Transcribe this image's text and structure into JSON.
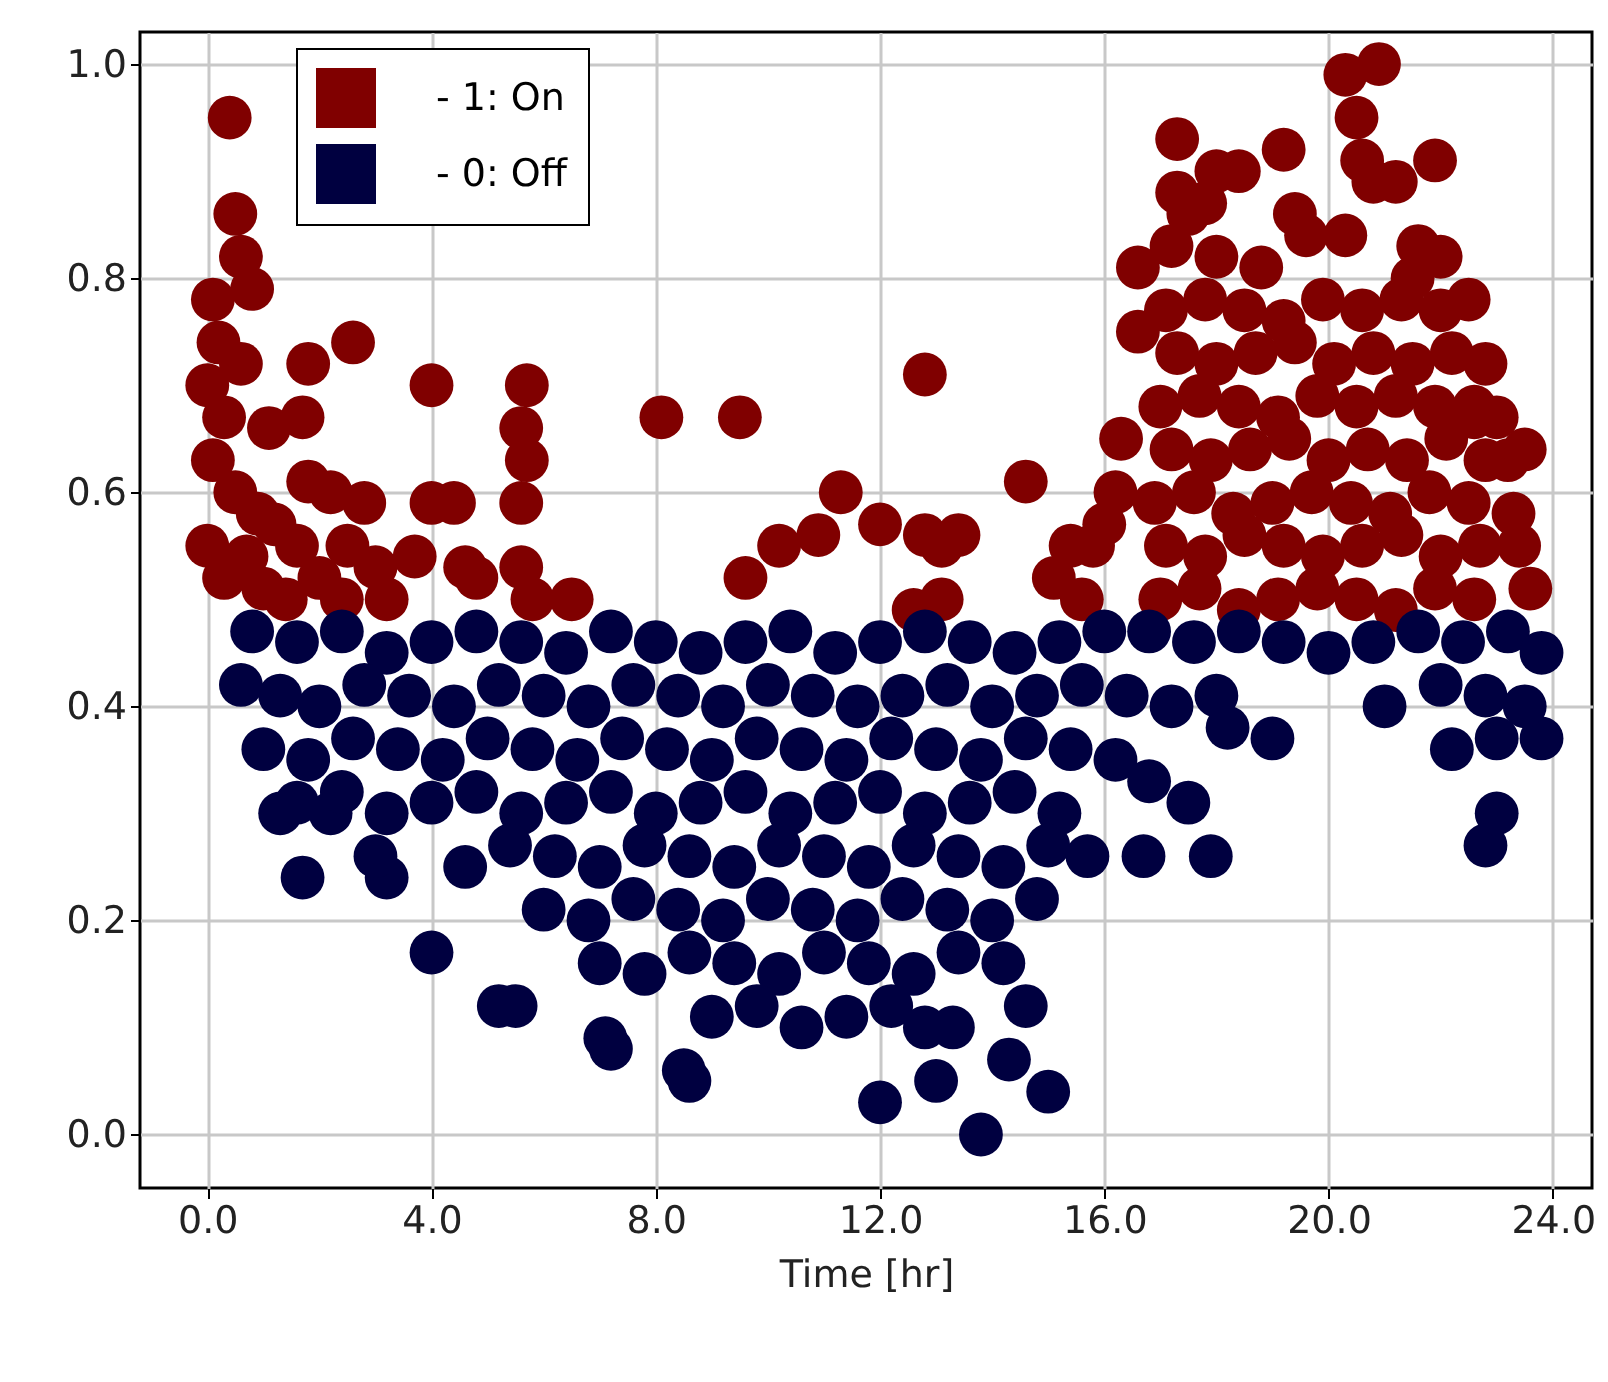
{
  "chart_data": {
    "type": "scatter",
    "xlabel": "Time [hr]",
    "xlim": [
      -1.2,
      24.7
    ],
    "ylim": [
      -0.05,
      1.03
    ],
    "xticks": [
      {
        "value": 0,
        "label": "0.0"
      },
      {
        "value": 4,
        "label": "4.0"
      },
      {
        "value": 8,
        "label": "8.0"
      },
      {
        "value": 12,
        "label": "12.0"
      },
      {
        "value": 16,
        "label": "16.0"
      },
      {
        "value": 20,
        "label": "20.0"
      },
      {
        "value": 24,
        "label": "24.0"
      }
    ],
    "yticks": [
      {
        "value": 0,
        "label": "0.0"
      },
      {
        "value": 0.2,
        "label": "0.2"
      },
      {
        "value": 0.4,
        "label": "0.4"
      },
      {
        "value": 0.6,
        "label": "0.6"
      },
      {
        "value": 0.8,
        "label": "0.8"
      },
      {
        "value": 1,
        "label": "1.0"
      }
    ],
    "grid": true,
    "legend": "top left",
    "marker": "circle",
    "series": [
      {
        "name": "- 1: On",
        "color": "#800000",
        "x": [
          0.4,
          0.5,
          0.6,
          0.8,
          0.1,
          0.2,
          0.0,
          0.6,
          0.3,
          1.1,
          0.1,
          0.5,
          0.9,
          0.0,
          0.3,
          0.7,
          1.2,
          1.6,
          2.0,
          2.4,
          1.8,
          1.7,
          1.8,
          2.6,
          2.2,
          2.8,
          1.0,
          3.0,
          1.4,
          3.2,
          2.5,
          4.0,
          4.0,
          4.4,
          3.7,
          4.6,
          4.8,
          5.7,
          5.6,
          5.7,
          5.6,
          5.6,
          5.8,
          6.5,
          8.1,
          9.5,
          9.6,
          10.2,
          10.9,
          11.3,
          12.0,
          12.6,
          12.8,
          12.8,
          13.1,
          13.4,
          13.1,
          14.6,
          15.1,
          15.6,
          15.8,
          17.3,
          17.3,
          17.5,
          17.8,
          17.2,
          18.0,
          18.0,
          18.4,
          18.8,
          19.2,
          19.4,
          19.6,
          20.3,
          20.9,
          20.5,
          20.6,
          20.8,
          21.2,
          21.9,
          20.3,
          21.6,
          22.0,
          22.5,
          21.5,
          16.6,
          16.6,
          16.3,
          16.2,
          16.0,
          15.4,
          23.0,
          23.2,
          23.3,
          23.4,
          23.6,
          23.5,
          22.8,
          22.6,
          17.0,
          17.7,
          18.4,
          19.1,
          19.8,
          20.5,
          21.2,
          21.9,
          22.6,
          17.1,
          17.8,
          18.5,
          19.2,
          19.9,
          20.6,
          21.3,
          22.0,
          22.7,
          16.9,
          17.6,
          18.3,
          19.0,
          19.7,
          20.4,
          21.1,
          21.8,
          22.5,
          17.2,
          17.9,
          18.6,
          19.3,
          20.0,
          20.7,
          21.4,
          22.1,
          22.8,
          17.0,
          17.7,
          18.4,
          19.1,
          19.8,
          20.5,
          21.2,
          21.9,
          22.6,
          17.3,
          18.0,
          18.7,
          19.4,
          20.1,
          20.8,
          21.5,
          22.2,
          17.1,
          17.8,
          18.5,
          19.2,
          19.9,
          20.6,
          21.3,
          22.0
        ],
        "values": [
          0.95,
          0.86,
          0.82,
          0.79,
          0.78,
          0.74,
          0.7,
          0.72,
          0.67,
          0.66,
          0.63,
          0.6,
          0.58,
          0.55,
          0.52,
          0.54,
          0.57,
          0.55,
          0.52,
          0.5,
          0.61,
          0.67,
          0.72,
          0.74,
          0.6,
          0.59,
          0.51,
          0.53,
          0.5,
          0.5,
          0.55,
          0.7,
          0.59,
          0.59,
          0.54,
          0.53,
          0.52,
          0.7,
          0.66,
          0.63,
          0.59,
          0.53,
          0.5,
          0.5,
          0.67,
          0.67,
          0.52,
          0.55,
          0.56,
          0.6,
          0.57,
          0.49,
          0.71,
          0.56,
          0.55,
          0.56,
          0.5,
          0.61,
          0.52,
          0.5,
          0.55,
          0.93,
          0.88,
          0.86,
          0.87,
          0.83,
          0.82,
          0.9,
          0.9,
          0.81,
          0.92,
          0.86,
          0.84,
          0.99,
          1.0,
          0.95,
          0.91,
          0.89,
          0.89,
          0.91,
          0.84,
          0.83,
          0.82,
          0.78,
          0.8,
          0.81,
          0.75,
          0.65,
          0.6,
          0.57,
          0.55,
          0.67,
          0.63,
          0.58,
          0.55,
          0.51,
          0.64,
          0.72,
          0.68,
          0.5,
          0.51,
          0.49,
          0.5,
          0.51,
          0.5,
          0.49,
          0.51,
          0.5,
          0.55,
          0.54,
          0.56,
          0.55,
          0.54,
          0.55,
          0.56,
          0.54,
          0.55,
          0.59,
          0.6,
          0.58,
          0.59,
          0.6,
          0.59,
          0.58,
          0.6,
          0.59,
          0.64,
          0.63,
          0.64,
          0.65,
          0.63,
          0.64,
          0.63,
          0.65,
          0.63,
          0.68,
          0.69,
          0.68,
          0.67,
          0.69,
          0.68,
          0.69,
          0.68,
          0.67,
          0.73,
          0.72,
          0.73,
          0.74,
          0.72,
          0.73,
          0.72,
          0.73,
          0.77,
          0.78,
          0.77,
          0.76,
          0.78,
          0.77,
          0.78,
          0.77
        ]
      },
      {
        "name": "- 0: Off",
        "color": "#000040",
        "x": [
          1.3,
          1.7,
          2.2,
          3.2,
          4.0,
          5.2,
          5.5,
          7.2,
          7.1,
          8.5,
          8.6,
          12.0,
          13.0,
          13.8,
          15.0,
          13.3,
          14.3,
          16.7,
          17.9,
          19.0,
          22.8,
          23.0,
          23.8,
          16.8,
          17.5,
          0.8,
          1.6,
          2.4,
          3.2,
          4.0,
          4.8,
          5.6,
          6.4,
          7.2,
          8.0,
          8.8,
          9.6,
          10.4,
          11.2,
          12.0,
          12.8,
          13.6,
          14.4,
          15.2,
          16.0,
          16.8,
          17.6,
          18.4,
          19.2,
          20.0,
          20.8,
          21.6,
          22.4,
          23.2,
          23.8,
          0.6,
          1.3,
          2.0,
          2.8,
          3.6,
          4.4,
          5.2,
          6.0,
          6.8,
          7.6,
          8.4,
          9.2,
          10.0,
          10.8,
          11.6,
          12.4,
          13.2,
          14.0,
          14.8,
          15.6,
          16.4,
          17.2,
          18.0,
          18.2,
          21.0,
          22.0,
          22.8,
          23.5,
          1.0,
          1.8,
          2.6,
          3.4,
          4.2,
          5.0,
          5.8,
          6.6,
          7.4,
          8.2,
          9.0,
          9.8,
          10.6,
          11.4,
          12.2,
          13.0,
          13.8,
          14.6,
          15.4,
          16.2,
          22.2,
          23.0,
          1.6,
          2.4,
          3.2,
          4.0,
          4.8,
          5.6,
          6.4,
          7.2,
          8.0,
          8.8,
          9.6,
          10.4,
          11.2,
          12.0,
          12.8,
          13.6,
          14.4,
          15.2,
          3.0,
          4.6,
          5.4,
          6.2,
          7.0,
          7.8,
          8.6,
          9.4,
          10.2,
          11.0,
          11.8,
          12.6,
          13.4,
          14.2,
          15.0,
          15.7,
          6.0,
          6.8,
          7.6,
          8.4,
          9.2,
          10.0,
          10.8,
          11.6,
          12.4,
          13.2,
          14.0,
          14.8,
          7.0,
          7.8,
          8.6,
          9.4,
          10.2,
          11.0,
          11.8,
          12.6,
          13.4,
          14.2,
          9.0,
          9.8,
          10.6,
          11.4,
          12.2,
          12.8,
          14.6
        ],
        "values": [
          0.3,
          0.24,
          0.3,
          0.24,
          0.17,
          0.12,
          0.12,
          0.08,
          0.09,
          0.06,
          0.05,
          0.03,
          0.05,
          0.0,
          0.04,
          0.1,
          0.07,
          0.26,
          0.26,
          0.37,
          0.27,
          0.3,
          0.37,
          0.33,
          0.31,
          0.47,
          0.46,
          0.47,
          0.45,
          0.46,
          0.47,
          0.46,
          0.45,
          0.47,
          0.46,
          0.45,
          0.46,
          0.47,
          0.45,
          0.46,
          0.47,
          0.46,
          0.45,
          0.46,
          0.47,
          0.47,
          0.46,
          0.47,
          0.46,
          0.45,
          0.46,
          0.47,
          0.46,
          0.47,
          0.45,
          0.42,
          0.41,
          0.4,
          0.42,
          0.41,
          0.4,
          0.42,
          0.41,
          0.4,
          0.42,
          0.41,
          0.4,
          0.42,
          0.41,
          0.4,
          0.41,
          0.42,
          0.4,
          0.41,
          0.42,
          0.41,
          0.4,
          0.41,
          0.38,
          0.4,
          0.42,
          0.41,
          0.4,
          0.36,
          0.35,
          0.37,
          0.36,
          0.35,
          0.37,
          0.36,
          0.35,
          0.37,
          0.36,
          0.35,
          0.37,
          0.36,
          0.35,
          0.37,
          0.36,
          0.35,
          0.37,
          0.36,
          0.35,
          0.36,
          0.37,
          0.31,
          0.32,
          0.3,
          0.31,
          0.32,
          0.3,
          0.31,
          0.32,
          0.3,
          0.31,
          0.32,
          0.3,
          0.31,
          0.32,
          0.3,
          0.31,
          0.32,
          0.3,
          0.26,
          0.25,
          0.27,
          0.26,
          0.25,
          0.27,
          0.26,
          0.25,
          0.27,
          0.26,
          0.25,
          0.27,
          0.26,
          0.25,
          0.27,
          0.26,
          0.21,
          0.2,
          0.22,
          0.21,
          0.2,
          0.22,
          0.21,
          0.2,
          0.22,
          0.21,
          0.2,
          0.22,
          0.16,
          0.15,
          0.17,
          0.16,
          0.15,
          0.17,
          0.16,
          0.15,
          0.17,
          0.16,
          0.11,
          0.12,
          0.1,
          0.11,
          0.12,
          0.1,
          0.12
        ]
      }
    ]
  }
}
